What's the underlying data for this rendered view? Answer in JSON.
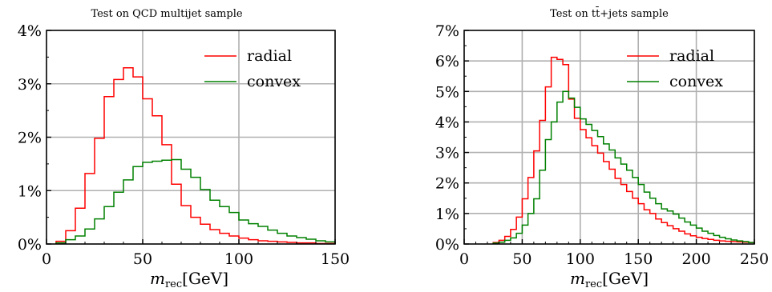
{
  "chart_data": [
    {
      "type": "line",
      "title": "Test on QCD multijet sample",
      "xlabel": {
        "var": "m",
        "sub": "rec",
        "unit": "[GeV]"
      },
      "ylabel": "",
      "xlim": [
        0,
        150
      ],
      "ylim": [
        0,
        4
      ],
      "xticks": [
        "0",
        "50",
        "100",
        "150"
      ],
      "yticks": [
        "0%",
        "1%",
        "2%",
        "3%",
        "4%"
      ],
      "grid": true,
      "legend": "top-right",
      "bin_edges": [
        5,
        10,
        15,
        20,
        25,
        30,
        35,
        40,
        45,
        50,
        55,
        60,
        65,
        70,
        75,
        80,
        85,
        90,
        95,
        100,
        105,
        110,
        115,
        120,
        125,
        130,
        135,
        140,
        145,
        150
      ],
      "series": [
        {
          "name": "radial",
          "color": "#ff0000",
          "values": [
            0.05,
            0.25,
            0.67,
            1.32,
            1.98,
            2.76,
            3.08,
            3.3,
            3.13,
            2.72,
            2.4,
            1.86,
            1.12,
            0.72,
            0.5,
            0.37,
            0.27,
            0.2,
            0.15,
            0.11,
            0.08,
            0.06,
            0.05,
            0.04,
            0.03,
            0.02,
            0.02,
            0.01,
            0.01
          ]
        },
        {
          "name": "convex",
          "color": "#008000",
          "values": [
            0.02,
            0.08,
            0.15,
            0.28,
            0.47,
            0.7,
            0.97,
            1.2,
            1.45,
            1.53,
            1.55,
            1.57,
            1.58,
            1.4,
            1.25,
            1.02,
            0.82,
            0.7,
            0.59,
            0.45,
            0.38,
            0.33,
            0.26,
            0.2,
            0.15,
            0.12,
            0.09,
            0.06,
            0.04
          ]
        }
      ]
    },
    {
      "type": "line",
      "title": "Test on tt̄+jets sample",
      "xlabel": {
        "var": "m",
        "sub": "rec",
        "unit": "[GeV]"
      },
      "ylabel": "",
      "xlim": [
        0,
        250
      ],
      "ylim": [
        0,
        7
      ],
      "xticks": [
        "0",
        "50",
        "100",
        "150",
        "200",
        "250"
      ],
      "yticks": [
        "0%",
        "1%",
        "2%",
        "3%",
        "4%",
        "5%",
        "6%",
        "7%"
      ],
      "grid": true,
      "legend": "top-right",
      "bin_edges": [
        25,
        30,
        35,
        40,
        45,
        50,
        55,
        60,
        65,
        70,
        75,
        80,
        85,
        90,
        95,
        100,
        105,
        110,
        115,
        120,
        125,
        130,
        135,
        140,
        145,
        150,
        155,
        160,
        165,
        170,
        175,
        180,
        185,
        190,
        195,
        200,
        205,
        210,
        215,
        220,
        225,
        230,
        235,
        240,
        245,
        250
      ],
      "series": [
        {
          "name": "radial",
          "color": "#ff0000",
          "values": [
            0.05,
            0.12,
            0.25,
            0.48,
            0.88,
            1.48,
            2.18,
            3.05,
            4.05,
            5.15,
            6.12,
            6.05,
            5.88,
            4.75,
            4.12,
            3.75,
            3.48,
            3.22,
            2.98,
            2.7,
            2.45,
            2.15,
            1.95,
            1.72,
            1.5,
            1.32,
            1.12,
            1.0,
            0.82,
            0.7,
            0.6,
            0.5,
            0.42,
            0.33,
            0.27,
            0.22,
            0.18,
            0.15,
            0.12,
            0.1,
            0.09,
            0.08,
            0.07,
            0.06,
            0.05
          ]
        },
        {
          "name": "convex",
          "color": "#008000",
          "values": [
            0.03,
            0.06,
            0.12,
            0.2,
            0.35,
            0.62,
            1.0,
            1.48,
            2.42,
            3.42,
            4.0,
            4.65,
            5.0,
            4.78,
            4.48,
            4.1,
            3.92,
            3.72,
            3.52,
            3.28,
            3.08,
            2.82,
            2.62,
            2.42,
            2.18,
            1.95,
            1.7,
            1.5,
            1.32,
            1.15,
            1.08,
            0.98,
            0.85,
            0.72,
            0.62,
            0.52,
            0.42,
            0.35,
            0.28,
            0.22,
            0.17,
            0.13,
            0.1,
            0.08,
            0.05
          ]
        }
      ]
    }
  ]
}
